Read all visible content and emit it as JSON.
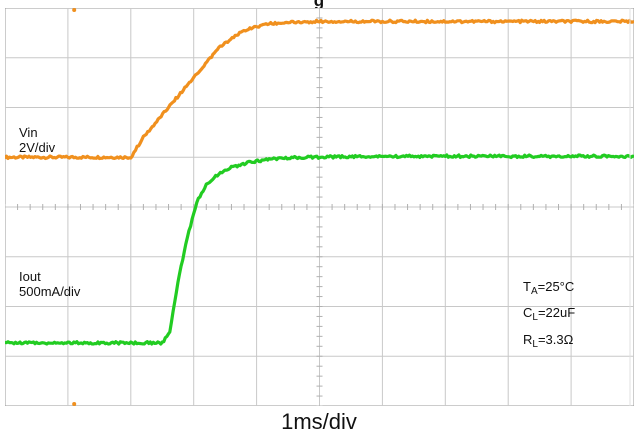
{
  "chart_data": {
    "type": "line",
    "title": "g",
    "x_divisions": 10,
    "y_divisions": 8,
    "xlabel": "1ms/div",
    "x_unit_per_div": "1ms",
    "x_range_ms": [
      0,
      10
    ],
    "grid": true,
    "series": [
      {
        "name": "Vin",
        "scale": "2V/div",
        "color": "#f0901e",
        "x_ms": [
          0,
          2.0,
          2.2,
          2.6,
          3.0,
          3.4,
          3.8,
          4.2,
          4.6,
          5.0,
          6.0,
          8.0,
          10.0
        ],
        "y_div": [
          5.0,
          5.0,
          5.4,
          6.0,
          6.6,
          7.2,
          7.55,
          7.68,
          7.72,
          7.73,
          7.73,
          7.73,
          7.73
        ]
      },
      {
        "name": "Iout",
        "scale": "500mA/div",
        "color": "#22cc22",
        "x_ms": [
          0,
          2.5,
          2.62,
          2.75,
          2.9,
          3.05,
          3.2,
          3.4,
          3.6,
          3.9,
          4.2,
          4.7,
          5.5,
          7.0,
          10.0
        ],
        "y_div": [
          1.27,
          1.27,
          1.5,
          2.5,
          3.4,
          4.1,
          4.45,
          4.67,
          4.8,
          4.9,
          4.96,
          5.0,
          5.01,
          5.02,
          5.02
        ]
      }
    ],
    "annotations": {
      "vin_name": "Vin",
      "vin_scale": "2V/div",
      "iout_name": "Iout",
      "iout_scale": "500mA/div",
      "ta_sub": "A",
      "ta_value": "=25°C",
      "cl_sub": "L",
      "cl_value": "=22uF",
      "rl_sub": "L",
      "rl_value": "=3.3Ω"
    }
  }
}
